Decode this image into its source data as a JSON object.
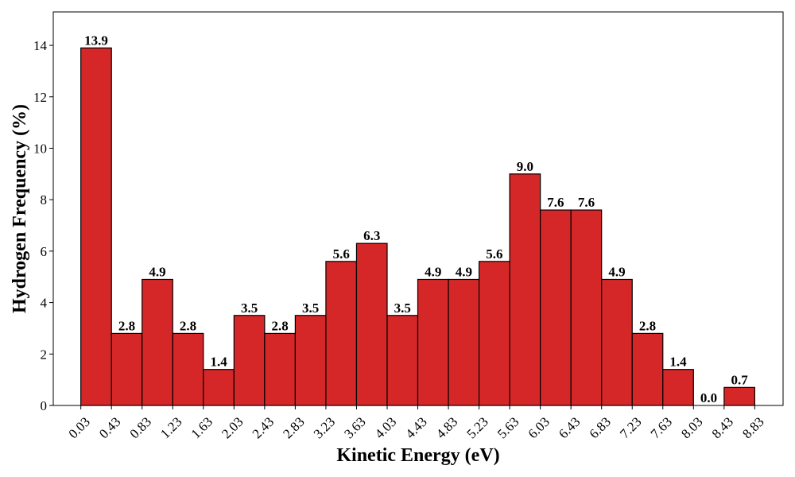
{
  "colors": {
    "bar_fill": "#d62728",
    "bar_edge": "#000000",
    "axis": "#000000"
  },
  "chart_data": {
    "type": "bar",
    "title": "",
    "xlabel": "Kinetic Energy (eV)",
    "ylabel": "Hydrogen Frequency (%)",
    "bin_edges": [
      0.03,
      0.43,
      0.83,
      1.23,
      1.63,
      2.03,
      2.43,
      2.83,
      3.23,
      3.63,
      4.03,
      4.43,
      4.83,
      5.23,
      5.63,
      6.03,
      6.43,
      6.83,
      7.23,
      7.63,
      8.03,
      8.43,
      8.83
    ],
    "x_tick_labels": [
      "0.03",
      "0.43",
      "0.83",
      "1.23",
      "1.63",
      "2.03",
      "2.43",
      "2.83",
      "3.23",
      "3.63",
      "4.03",
      "4.43",
      "4.83",
      "5.23",
      "5.63",
      "6.03",
      "6.43",
      "6.83",
      "7.23",
      "7.63",
      "8.03",
      "8.43",
      "8.83"
    ],
    "values": [
      13.9,
      2.8,
      4.9,
      2.8,
      1.4,
      3.5,
      2.8,
      3.5,
      5.6,
      6.3,
      3.5,
      4.9,
      4.9,
      5.6,
      9.0,
      7.6,
      7.6,
      4.9,
      2.8,
      1.4,
      0.0,
      0.7
    ],
    "value_labels": [
      "13.9",
      "2.8",
      "4.9",
      "2.8",
      "1.4",
      "3.5",
      "2.8",
      "3.5",
      "5.6",
      "6.3",
      "3.5",
      "4.9",
      "4.9",
      "5.6",
      "9.0",
      "7.6",
      "7.6",
      "4.9",
      "2.8",
      "1.4",
      "0.0",
      "0.7"
    ],
    "y_ticks": [
      0,
      2,
      4,
      6,
      8,
      10,
      12,
      14
    ],
    "y_tick_labels": [
      "0",
      "2",
      "4",
      "6",
      "8",
      "10",
      "12",
      "14"
    ],
    "xlim": [
      -0.33,
      9.2
    ],
    "ylim": [
      0,
      15.3
    ],
    "grid": false,
    "legend": "none"
  }
}
